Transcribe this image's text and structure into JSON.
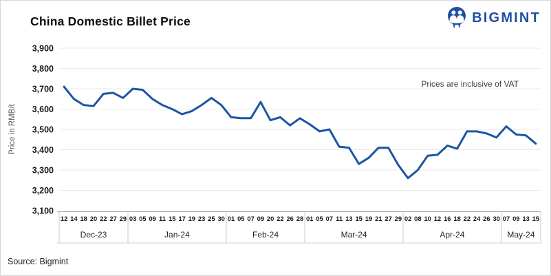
{
  "header": {
    "title": "China Domestic Billet Price"
  },
  "logo": {
    "text": "BIGMINT",
    "icon": "bigmint-people-icon",
    "color": "#1E4FA3"
  },
  "annotation": "Prices are inclusive of VAT",
  "source": "Source: Bigmint",
  "chart_data": {
    "type": "line",
    "title": "China Domestic Billet Price",
    "xlabel": "",
    "ylabel": "Price in RMB/t",
    "ylim": [
      3100,
      3900
    ],
    "grid": "horizontal",
    "legend": "none",
    "line_color": "#1C55A4",
    "yticks": [
      {
        "v": 3900,
        "label": "3,900"
      },
      {
        "v": 3800,
        "label": "3,800"
      },
      {
        "v": 3700,
        "label": "3,700"
      },
      {
        "v": 3600,
        "label": "3,600"
      },
      {
        "v": 3500,
        "label": "3,500"
      },
      {
        "v": 3400,
        "label": "3,400"
      },
      {
        "v": 3300,
        "label": "3,300"
      },
      {
        "v": 3200,
        "label": "3,200"
      },
      {
        "v": 3100,
        "label": "3,100"
      }
    ],
    "months": [
      {
        "label": "Dec-23",
        "days": [
          "12",
          "14",
          "18",
          "20",
          "22",
          "27",
          "29"
        ],
        "values": [
          3710,
          3650,
          3620,
          3615,
          3675,
          3680,
          3655
        ]
      },
      {
        "label": "Jan-24",
        "days": [
          "03",
          "05",
          "09",
          "11",
          "15",
          "17",
          "19",
          "23",
          "25",
          "30"
        ],
        "values": [
          3700,
          3695,
          3650,
          3620,
          3600,
          3575,
          3590,
          3620,
          3655,
          3620
        ]
      },
      {
        "label": "Feb-24",
        "days": [
          "01",
          "05",
          "07",
          "09",
          "20",
          "22",
          "26",
          "28"
        ],
        "values": [
          3560,
          3555,
          3555,
          3635,
          3545,
          3560,
          3520,
          3555
        ]
      },
      {
        "label": "Mar-24",
        "days": [
          "01",
          "05",
          "07",
          "11",
          "13",
          "15",
          "19",
          "21",
          "27",
          "29"
        ],
        "values": [
          3525,
          3490,
          3500,
          3415,
          3410,
          3330,
          3360,
          3410,
          3410,
          3325
        ]
      },
      {
        "label": "Apr-24",
        "days": [
          "02",
          "08",
          "10",
          "12",
          "16",
          "18",
          "22",
          "24",
          "26",
          "30"
        ],
        "values": [
          3260,
          3300,
          3370,
          3375,
          3420,
          3405,
          3490,
          3490,
          3480,
          3460
        ]
      },
      {
        "label": "May-24",
        "days": [
          "07",
          "09",
          "13",
          "15"
        ],
        "values": [
          3515,
          3475,
          3470,
          3430
        ]
      }
    ],
    "series": [
      {
        "name": "China Domestic Billet Price",
        "color": "#1C55A4"
      }
    ]
  }
}
